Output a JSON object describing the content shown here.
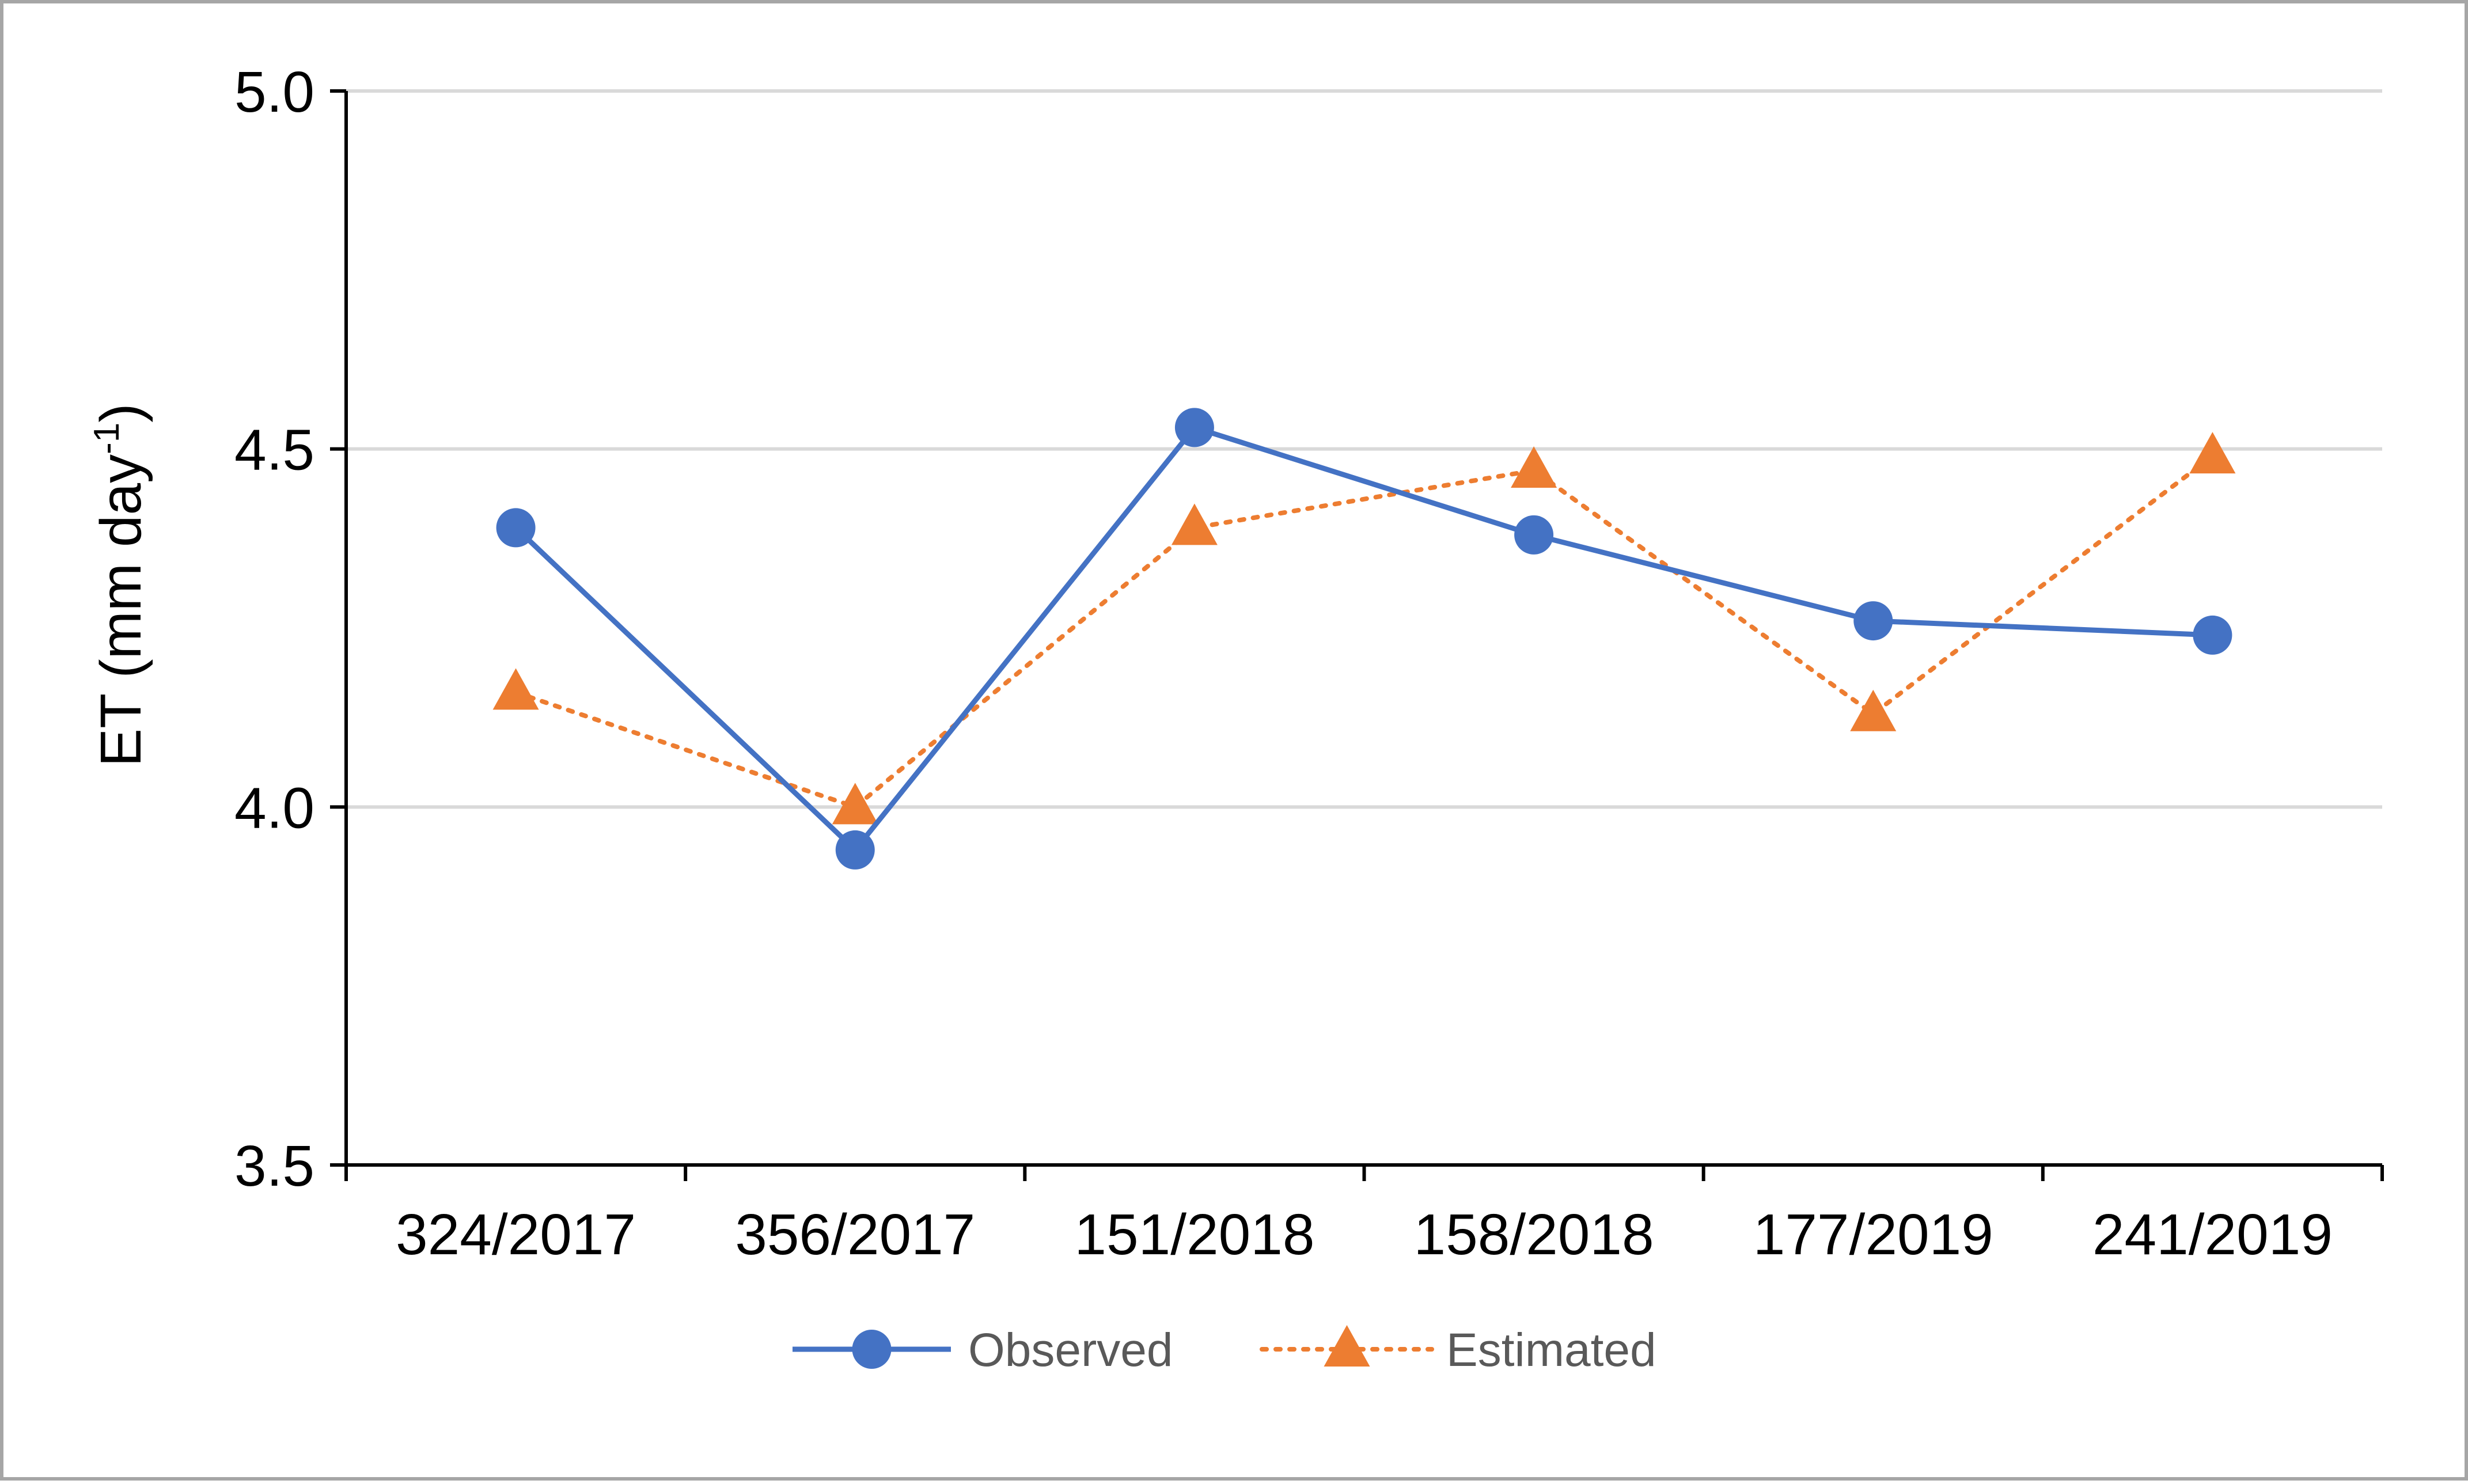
{
  "chart_data": {
    "type": "line",
    "categories": [
      "324/2017",
      "356/2017",
      "151/2018",
      "158/2018",
      "177/2019",
      "241/2019"
    ],
    "series": [
      {
        "name": "Observed",
        "values": [
          4.39,
          3.94,
          4.53,
          4.38,
          4.26,
          4.24
        ],
        "color": "#4472c4",
        "marker": "circle",
        "line_style": "solid"
      },
      {
        "name": "Estimated",
        "values": [
          4.16,
          4.0,
          4.39,
          4.47,
          4.13,
          4.49
        ],
        "color": "#ed7d31",
        "marker": "triangle",
        "line_style": "dotted"
      }
    ],
    "ylabel": "ET (mm day",
    "ylabel_superscript": "-1",
    "ylabel_suffix": ")",
    "ylim": [
      3.5,
      5.0
    ],
    "yticks": [
      "3.5",
      "4.0",
      "4.5",
      "5.0"
    ],
    "grid": true,
    "legend_position": "bottom"
  }
}
